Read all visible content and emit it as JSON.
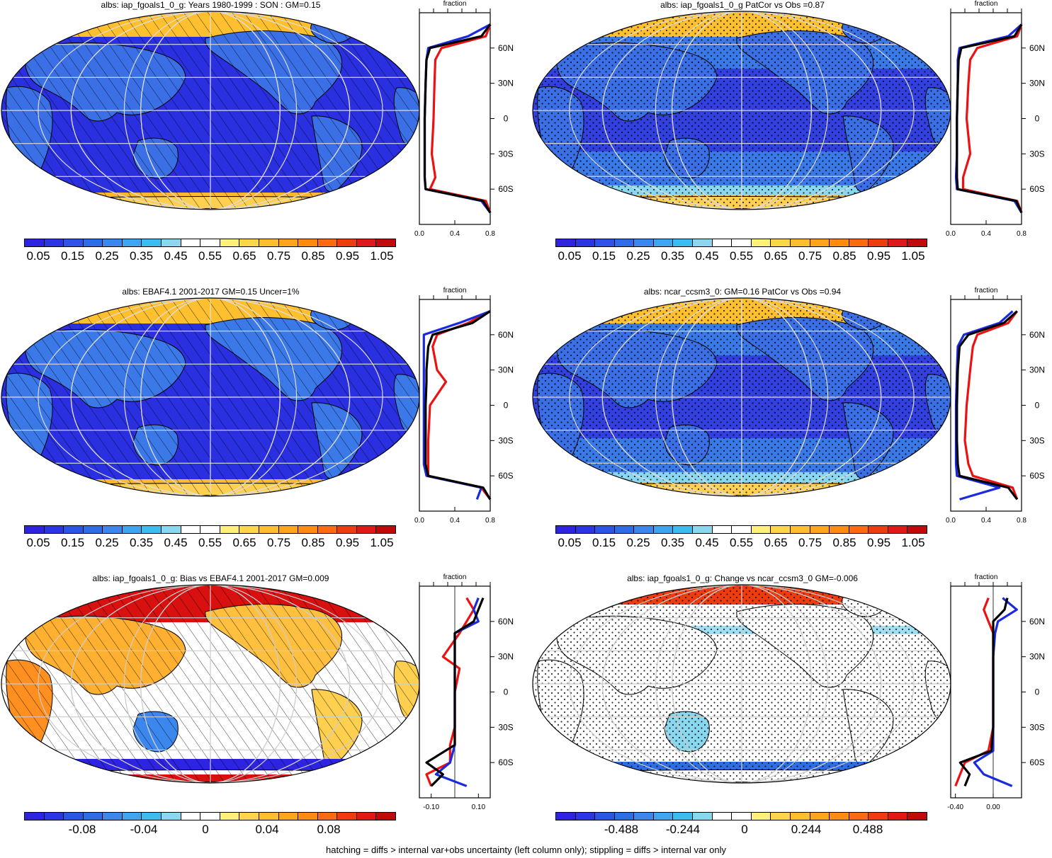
{
  "footer": "hatching = diffs > internal var+obs uncertainty (left column only); stippling = diffs > internal var only",
  "palettes": {
    "abs": [
      "#2d23e0",
      "#2a35e6",
      "#2c55e8",
      "#2f6de6",
      "#3b87ee",
      "#3ea6f0",
      "#3cbdf0",
      "#8ad8f0",
      "#ffffff",
      "#ffffff",
      "#fff07a",
      "#ffd54a",
      "#ffbe30",
      "#ffa51d",
      "#ff8c10",
      "#ff6a10",
      "#ee3b10",
      "#e01818",
      "#c00a0a"
    ],
    "diff": [
      "#2d23e0",
      "#2a35e6",
      "#2c55e8",
      "#2f6de6",
      "#3b87ee",
      "#3ea6f0",
      "#3cbdf0",
      "#8ad8f0",
      "#ffffff",
      "#ffffff",
      "#fff07a",
      "#ffd54a",
      "#ffbe30",
      "#ffa51d",
      "#ff8c10",
      "#ff6a10",
      "#ee3b10",
      "#e01818",
      "#c00a0a"
    ]
  },
  "panels": [
    {
      "id": "p1",
      "title": "albs: iap_fgoals1_0_g: Years 1980-1999 : SON : GM=0.15",
      "colorbar_labels": [
        "0.05",
        "0.15",
        "0.25",
        "0.35",
        "0.45",
        "0.55",
        "0.65",
        "0.75",
        "0.85",
        "0.95",
        "1.05"
      ],
      "zonal_title": "fraction",
      "zonal_ticks": [
        "0.0",
        "0.4",
        "0.8"
      ],
      "lat_ticks": [
        "60N",
        "30N",
        "0",
        "30S",
        "60S"
      ],
      "mask": "hatch"
    },
    {
      "id": "p2",
      "title": "albs: iap_fgoals1_0_g PatCor vs Obs =0.87",
      "colorbar_labels": [
        "0.05",
        "0.15",
        "0.25",
        "0.35",
        "0.45",
        "0.55",
        "0.65",
        "0.75",
        "0.85",
        "0.95",
        "1.05"
      ],
      "zonal_title": "fraction",
      "zonal_ticks": [
        "0.0",
        "0.4",
        "0.8"
      ],
      "lat_ticks": [
        "60N",
        "30N",
        "0",
        "30S",
        "60S"
      ],
      "mask": "stipple"
    },
    {
      "id": "p3",
      "title": "albs: EBAF4.1 2001-2017 GM=0.15 Uncer=1%",
      "colorbar_labels": [
        "0.05",
        "0.15",
        "0.25",
        "0.35",
        "0.45",
        "0.55",
        "0.65",
        "0.75",
        "0.85",
        "0.95",
        "1.05"
      ],
      "zonal_title": "fraction",
      "zonal_ticks": [
        "0.0",
        "0.4",
        "0.8"
      ],
      "lat_ticks": [
        "60N",
        "30N",
        "0",
        "30S",
        "60S"
      ],
      "mask": "hatch"
    },
    {
      "id": "p4",
      "title": "albs: ncar_ccsm3_0: GM=0.16 PatCor vs Obs =0.94",
      "colorbar_labels": [
        "0.05",
        "0.15",
        "0.25",
        "0.35",
        "0.45",
        "0.55",
        "0.65",
        "0.75",
        "0.85",
        "0.95",
        "1.05"
      ],
      "zonal_title": "fraction",
      "zonal_ticks": [
        "0.0",
        "0.4",
        "0.8"
      ],
      "lat_ticks": [
        "60N",
        "30N",
        "0",
        "30S",
        "60S"
      ],
      "mask": "stipple"
    },
    {
      "id": "p5",
      "title": "albs: iap_fgoals1_0_g: Bias vs EBAF4.1 2001-2017  GM=0.009",
      "colorbar_labels": [
        "-0.08",
        "-0.04",
        "0",
        "0.04",
        "0.08"
      ],
      "zonal_title": "fraction",
      "zonal_ticks": [
        "-0.10",
        "0.10"
      ],
      "lat_ticks": [
        "60N",
        "30N",
        "0",
        "30S",
        "60S"
      ],
      "mask": "hatch"
    },
    {
      "id": "p6",
      "title": "albs: iap_fgoals1_0_g: Change vs ncar_ccsm3_0 GM=-0.006",
      "colorbar_labels": [
        "-0.488",
        "-0.244",
        "0",
        "0.244",
        "0.488"
      ],
      "zonal_title": "fraction",
      "zonal_ticks": [
        "-0.40",
        "0.00"
      ],
      "lat_ticks": [
        "60N",
        "30N",
        "0",
        "30S",
        "60S"
      ],
      "mask": "stipple"
    }
  ],
  "chart_data": [
    {
      "type": "heatmap",
      "title": "albs: iap_fgoals1_0_g: Years 1980-1999 : SON : GM=0.15",
      "zonal_mean": {
        "type": "line",
        "xlabel": "fraction",
        "xlim": [
          0.0,
          0.8
        ],
        "lat": [
          80,
          70,
          60,
          50,
          30,
          0,
          -30,
          -50,
          -60,
          -70,
          -80
        ],
        "series": [
          {
            "color": "red",
            "values": [
              0.8,
              0.75,
              0.25,
              0.18,
              0.17,
              0.16,
              0.14,
              0.18,
              0.12,
              0.75,
              0.8
            ]
          },
          {
            "color": "blue",
            "values": [
              0.8,
              0.55,
              0.1,
              0.08,
              0.07,
              0.06,
              0.06,
              0.06,
              0.07,
              0.7,
              0.8
            ]
          },
          {
            "color": "black",
            "values": [
              0.8,
              0.7,
              0.12,
              0.08,
              0.07,
              0.06,
              0.06,
              0.06,
              0.07,
              0.72,
              0.8
            ]
          }
        ]
      }
    },
    {
      "type": "heatmap",
      "title": "albs: iap_fgoals1_0_g PatCor vs Obs =0.87",
      "zonal_mean": {
        "type": "line",
        "xlabel": "fraction",
        "xlim": [
          0.0,
          0.8
        ],
        "lat": [
          80,
          70,
          60,
          50,
          30,
          0,
          -30,
          -50,
          -60,
          -70,
          -80
        ],
        "series": [
          {
            "color": "red",
            "values": [
              0.8,
              0.75,
              0.3,
              0.22,
              0.2,
              0.18,
              0.22,
              0.14,
              0.14,
              0.75,
              0.8
            ]
          },
          {
            "color": "blue",
            "values": [
              0.8,
              0.65,
              0.1,
              0.08,
              0.08,
              0.07,
              0.07,
              0.06,
              0.07,
              0.72,
              0.8
            ]
          },
          {
            "color": "black",
            "values": [
              0.8,
              0.72,
              0.12,
              0.09,
              0.08,
              0.07,
              0.07,
              0.07,
              0.08,
              0.74,
              0.8
            ]
          }
        ]
      }
    },
    {
      "type": "heatmap",
      "title": "albs: EBAF4.1 2001-2017 GM=0.15 Uncer=1%",
      "zonal_mean": {
        "type": "line",
        "xlabel": "fraction",
        "xlim": [
          0.0,
          0.8
        ],
        "lat": [
          80,
          70,
          60,
          50,
          30,
          20,
          0,
          -30,
          -50,
          -60,
          -70,
          -80
        ],
        "series": [
          {
            "color": "red",
            "values": [
              0.8,
              0.55,
              0.2,
              0.15,
              0.2,
              0.3,
              0.12,
              0.1,
              0.1,
              0.1,
              0.7,
              0.8
            ]
          },
          {
            "color": "blue",
            "values": [
              0.8,
              0.45,
              0.05,
              0.05,
              0.05,
              0.05,
              0.05,
              0.05,
              0.05,
              0.08,
              0.7,
              0.65
            ]
          },
          {
            "color": "black",
            "values": [
              0.8,
              0.6,
              0.15,
              0.1,
              0.08,
              0.08,
              0.07,
              0.07,
              0.07,
              0.1,
              0.72,
              0.8
            ]
          }
        ]
      }
    },
    {
      "type": "heatmap",
      "title": "albs: ncar_ccsm3_0: GM=0.16 PatCor vs Obs =0.94",
      "zonal_mean": {
        "type": "line",
        "xlabel": "fraction",
        "xlim": [
          0.0,
          0.8
        ],
        "lat": [
          80,
          70,
          60,
          50,
          30,
          0,
          -30,
          -50,
          -60,
          -70,
          -80
        ],
        "series": [
          {
            "color": "red",
            "values": [
              0.75,
              0.65,
              0.3,
              0.25,
              0.22,
              0.18,
              0.16,
              0.2,
              0.25,
              0.7,
              0.75
            ]
          },
          {
            "color": "blue",
            "values": [
              0.7,
              0.55,
              0.15,
              0.08,
              0.07,
              0.06,
              0.06,
              0.06,
              0.07,
              0.55,
              0.1
            ]
          },
          {
            "color": "black",
            "values": [
              0.75,
              0.6,
              0.2,
              0.1,
              0.08,
              0.07,
              0.07,
              0.08,
              0.1,
              0.65,
              0.75
            ]
          }
        ]
      }
    },
    {
      "type": "heatmap",
      "title": "albs: iap_fgoals1_0_g: Bias vs EBAF4.1 2001-2017  GM=0.009",
      "zonal_mean": {
        "type": "line",
        "xlabel": "fraction",
        "xlim": [
          -0.15,
          0.15
        ],
        "lat": [
          80,
          70,
          60,
          50,
          30,
          20,
          0,
          -30,
          -45,
          -60,
          -70,
          -80
        ],
        "series": [
          {
            "color": "red",
            "values": [
              0.05,
              0.08,
              0.05,
              0.02,
              -0.05,
              0.02,
              0.0,
              0.0,
              -0.02,
              -0.02,
              -0.12,
              -0.1
            ]
          },
          {
            "color": "blue",
            "values": [
              0.1,
              0.08,
              0.1,
              0.0,
              0.0,
              0.0,
              0.0,
              0.0,
              0.0,
              -0.02,
              -0.08,
              0.05
            ]
          },
          {
            "color": "black",
            "values": [
              0.12,
              0.1,
              0.08,
              0.0,
              0.0,
              0.0,
              0.0,
              0.0,
              0.0,
              -0.12,
              -0.05,
              -0.1
            ]
          }
        ]
      }
    },
    {
      "type": "heatmap",
      "title": "albs: iap_fgoals1_0_g: Change vs ncar_ccsm3_0 GM=-0.006",
      "zonal_mean": {
        "type": "line",
        "xlabel": "fraction",
        "xlim": [
          -0.45,
          0.3
        ],
        "lat": [
          80,
          70,
          60,
          50,
          30,
          0,
          -30,
          -50,
          -60,
          -70,
          -80
        ],
        "series": [
          {
            "color": "red",
            "values": [
              -0.05,
              -0.1,
              -0.05,
              0.0,
              0.0,
              0.0,
              0.0,
              -0.05,
              -0.3,
              -0.35,
              -0.4
            ]
          },
          {
            "color": "blue",
            "values": [
              0.1,
              0.25,
              0.05,
              0.02,
              0.0,
              0.0,
              0.0,
              0.0,
              -0.2,
              -0.1,
              0.2
            ]
          },
          {
            "color": "black",
            "values": [
              0.15,
              0.12,
              0.0,
              0.0,
              0.0,
              0.0,
              0.0,
              -0.02,
              -0.35,
              -0.25,
              -0.3
            ]
          }
        ]
      }
    }
  ]
}
